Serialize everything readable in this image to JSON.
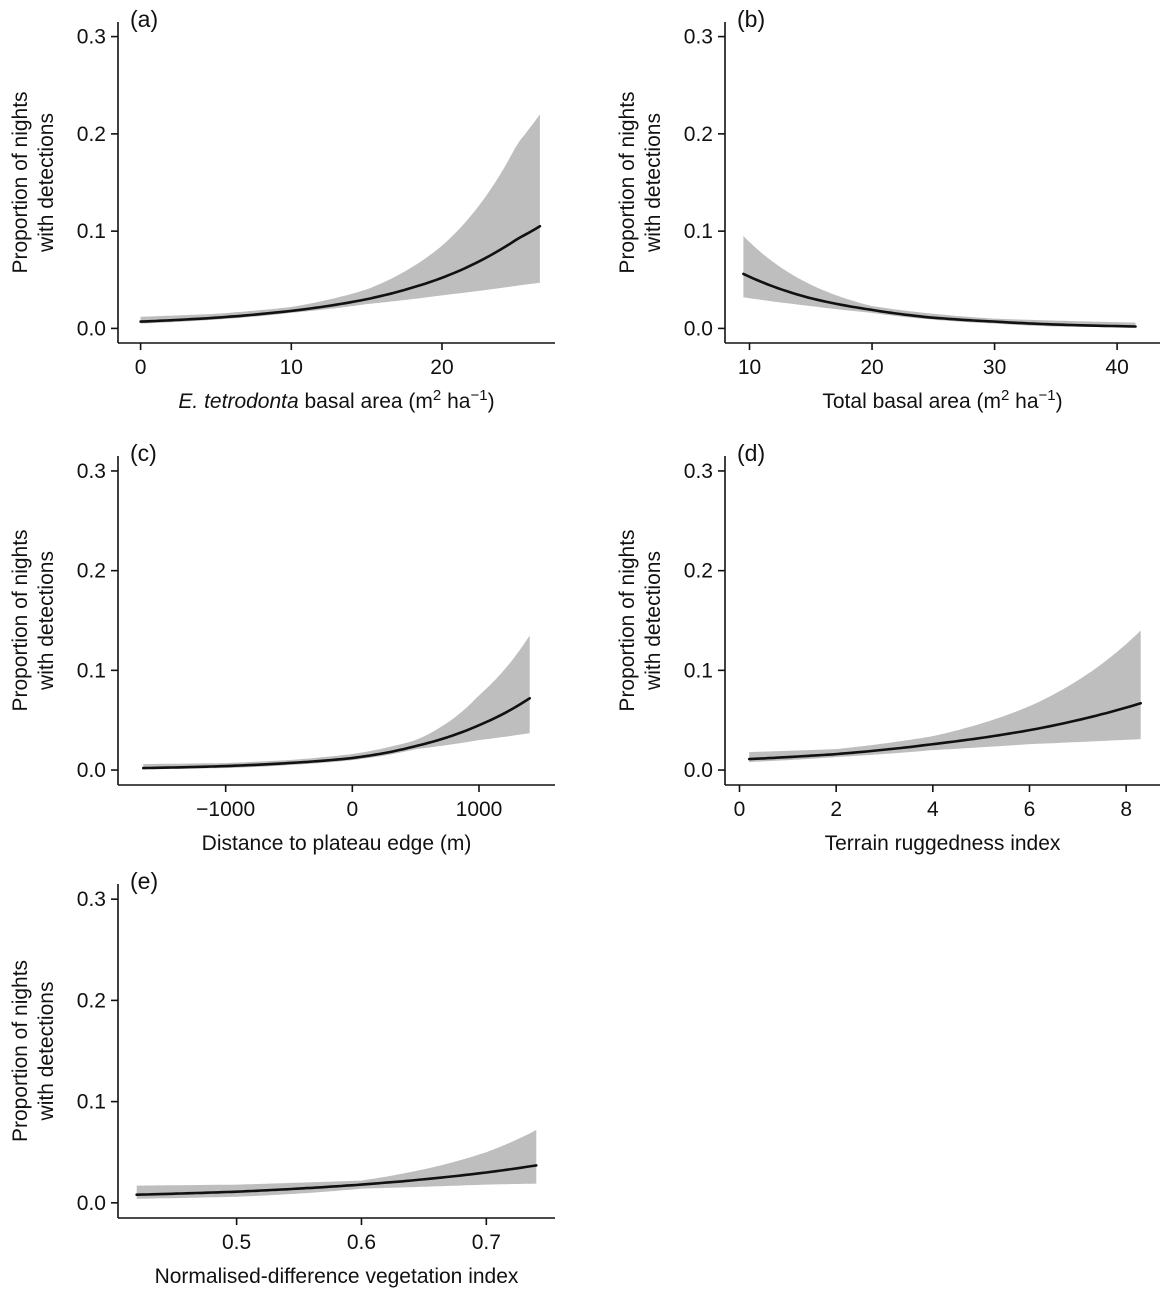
{
  "chart_data": [
    {
      "type": "line",
      "panel": "a",
      "panel_label": "(a)",
      "xlabel": "E. tetrodonta basal area (m2 ha−1)",
      "xlabel_parts": {
        "italic": "E. tetrodonta",
        "pre": " basal area (m",
        "sup1": "2",
        "mid": " ha",
        "sup2": "−1",
        "post": ")"
      },
      "ylabel": [
        "Proportion of nights",
        "with detections"
      ],
      "xlim": [
        -1.5,
        27.5
      ],
      "ylim": [
        -0.015,
        0.315
      ],
      "xticks": [
        0,
        10,
        20
      ],
      "xtick_labels": [
        "0",
        "10",
        "20"
      ],
      "yticks": [
        0.0,
        0.1,
        0.2,
        0.3
      ],
      "ytick_labels": [
        "0.0",
        "0.1",
        "0.2",
        "0.3"
      ],
      "ribbon_color": "#bebebe",
      "line_color": "#111111",
      "x": [
        0,
        5,
        10,
        15,
        20,
        25,
        26.5
      ],
      "y": [
        0.007,
        0.011,
        0.018,
        0.03,
        0.052,
        0.092,
        0.105
      ],
      "lower": [
        0.005,
        0.009,
        0.016,
        0.025,
        0.034,
        0.044,
        0.047
      ],
      "upper": [
        0.012,
        0.015,
        0.022,
        0.04,
        0.085,
        0.19,
        0.22
      ]
    },
    {
      "type": "line",
      "panel": "b",
      "panel_label": "(b)",
      "xlabel": "Total basal area (m2 ha−1)",
      "xlabel_parts": {
        "italic": "",
        "pre": "Total basal area (m",
        "sup1": "2",
        "mid": " ha",
        "sup2": "−1",
        "post": ")"
      },
      "ylabel": [
        "Proportion of nights",
        "with detections"
      ],
      "xlim": [
        8.0,
        43.5
      ],
      "ylim": [
        -0.015,
        0.315
      ],
      "xticks": [
        10,
        20,
        30,
        40
      ],
      "xtick_labels": [
        "10",
        "20",
        "30",
        "40"
      ],
      "yticks": [
        0.0,
        0.1,
        0.2,
        0.3
      ],
      "ytick_labels": [
        "0.0",
        "0.1",
        "0.2",
        "0.3"
      ],
      "ribbon_color": "#bebebe",
      "line_color": "#111111",
      "x": [
        9.5,
        15,
        20,
        25,
        30,
        35,
        41.5
      ],
      "y": [
        0.056,
        0.031,
        0.019,
        0.011,
        0.007,
        0.004,
        0.002
      ],
      "lower": [
        0.032,
        0.023,
        0.016,
        0.009,
        0.005,
        0.002,
        0.001
      ],
      "upper": [
        0.095,
        0.045,
        0.023,
        0.015,
        0.01,
        0.008,
        0.006
      ]
    },
    {
      "type": "line",
      "panel": "c",
      "panel_label": "(c)",
      "xlabel": "Distance to plateau edge (m)",
      "xlabel_parts": {
        "italic": "",
        "pre": "Distance to plateau edge (m)",
        "sup1": "",
        "mid": "",
        "sup2": "",
        "post": ""
      },
      "ylabel": [
        "Proportion of nights",
        "with detections"
      ],
      "xlim": [
        -1850,
        1600
      ],
      "ylim": [
        -0.015,
        0.315
      ],
      "xticks": [
        -1000,
        0,
        1000
      ],
      "xtick_labels": [
        "−1000",
        "0",
        "1000"
      ],
      "yticks": [
        0.0,
        0.1,
        0.2,
        0.3
      ],
      "ytick_labels": [
        "0.0",
        "0.1",
        "0.2",
        "0.3"
      ],
      "ribbon_color": "#bebebe",
      "line_color": "#111111",
      "x": [
        -1650,
        -1000,
        -500,
        0,
        500,
        1000,
        1400
      ],
      "y": [
        0.002,
        0.004,
        0.007,
        0.012,
        0.024,
        0.045,
        0.072
      ],
      "lower": [
        0.001,
        0.002,
        0.005,
        0.01,
        0.021,
        0.03,
        0.037
      ],
      "upper": [
        0.006,
        0.007,
        0.01,
        0.016,
        0.03,
        0.075,
        0.135
      ]
    },
    {
      "type": "line",
      "panel": "d",
      "panel_label": "(d)",
      "xlabel": "Terrain ruggedness index",
      "xlabel_parts": {
        "italic": "",
        "pre": "Terrain ruggedness index",
        "sup1": "",
        "mid": "",
        "sup2": "",
        "post": ""
      },
      "ylabel": [
        "Proportion of nights",
        "with detections"
      ],
      "xlim": [
        -0.3,
        8.7
      ],
      "ylim": [
        -0.015,
        0.315
      ],
      "xticks": [
        0,
        2,
        4,
        6,
        8
      ],
      "xtick_labels": [
        "0",
        "2",
        "4",
        "6",
        "8"
      ],
      "yticks": [
        0.0,
        0.1,
        0.2,
        0.3
      ],
      "ytick_labels": [
        "0.0",
        "0.1",
        "0.2",
        "0.3"
      ],
      "ribbon_color": "#bebebe",
      "line_color": "#111111",
      "x": [
        0.2,
        2,
        4,
        6,
        8.3
      ],
      "y": [
        0.011,
        0.016,
        0.026,
        0.04,
        0.067
      ],
      "lower": [
        0.008,
        0.013,
        0.02,
        0.026,
        0.031
      ],
      "upper": [
        0.018,
        0.021,
        0.034,
        0.064,
        0.14
      ]
    },
    {
      "type": "line",
      "panel": "e",
      "panel_label": "(e)",
      "xlabel": "Normalised-difference vegetation index",
      "xlabel_parts": {
        "italic": "",
        "pre": "Normalised-difference vegetation index",
        "sup1": "",
        "mid": "",
        "sup2": "",
        "post": ""
      },
      "ylabel": [
        "Proportion of nights",
        "with detections"
      ],
      "xlim": [
        0.405,
        0.755
      ],
      "ylim": [
        -0.015,
        0.315
      ],
      "xticks": [
        0.5,
        0.6,
        0.7
      ],
      "xtick_labels": [
        "0.5",
        "0.6",
        "0.7"
      ],
      "yticks": [
        0.0,
        0.1,
        0.2,
        0.3
      ],
      "ytick_labels": [
        "0.0",
        "0.1",
        "0.2",
        "0.3"
      ],
      "ribbon_color": "#bebebe",
      "line_color": "#111111",
      "x": [
        0.42,
        0.5,
        0.6,
        0.7,
        0.74
      ],
      "y": [
        0.008,
        0.011,
        0.018,
        0.03,
        0.037
      ],
      "lower": [
        0.004,
        0.006,
        0.014,
        0.018,
        0.019
      ],
      "upper": [
        0.017,
        0.018,
        0.022,
        0.05,
        0.072
      ]
    }
  ]
}
